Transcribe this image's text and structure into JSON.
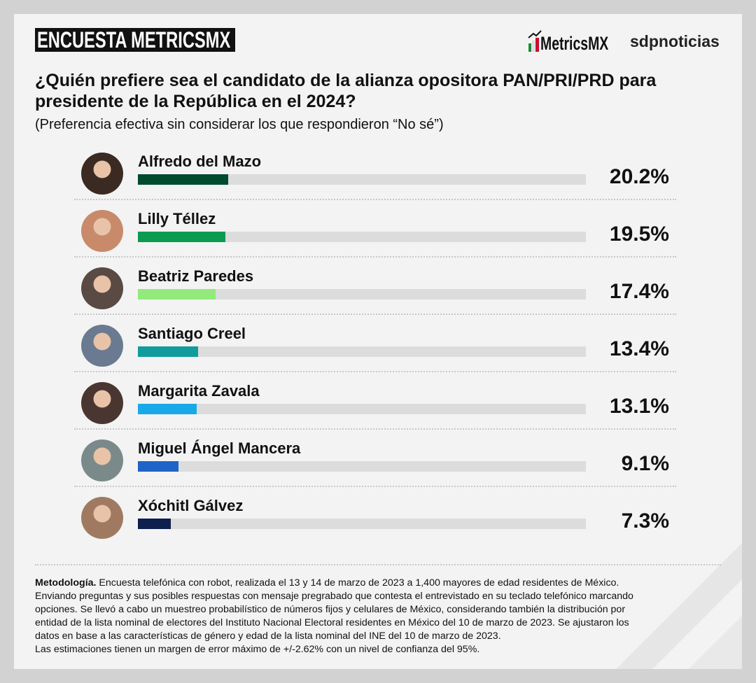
{
  "header": {
    "badge": "ENCUESTA METRICSMX",
    "logo_metrics": "MetricsMX",
    "logo_sdp": "sdpnoticias"
  },
  "title": "¿Quién prefiere sea el candidato de la alianza opositora PAN/PRI/PRD para presidente de la República en el 2024?",
  "subtitle": "(Preferencia efectiva sin considerar los que respondieron “No sé”)",
  "chart_data": {
    "type": "bar",
    "orientation": "horizontal",
    "title": "¿Quién prefiere sea el candidato de la alianza opositora PAN/PRI/PRD para presidente de la República en el 2024?",
    "xlim": [
      0,
      100
    ],
    "categories": [
      "Alfredo del Mazo",
      "Lilly Téllez",
      "Beatriz Paredes",
      "Santiago Creel",
      "Margarita Zavala",
      "Miguel Ángel Mancera",
      "Xóchitl Gálvez"
    ],
    "values": [
      20.2,
      19.5,
      17.4,
      13.4,
      13.1,
      9.1,
      7.3
    ],
    "labels": [
      "20.2%",
      "19.5%",
      "17.4%",
      "13.4%",
      "13.1%",
      "9.1%",
      "7.3%"
    ],
    "colors": [
      "#004a2e",
      "#0b9b50",
      "#93ea7c",
      "#129b9c",
      "#1aa9e8",
      "#1f63c7",
      "#0e1f4e"
    ],
    "avatar_colors": [
      "#3b2a22",
      "#c88a6a",
      "#5a4a44",
      "#6a7a90",
      "#4a3630",
      "#7a8a8a",
      "#a07a60"
    ]
  },
  "methodology": {
    "label": "Metodología.",
    "lines": [
      " Encuesta telefónica con robot, realizada el 13 y 14 de marzo de 2023 a 1,400 mayores de edad residentes de México.",
      "Enviando preguntas y sus posibles respuestas con mensaje pregrabado que contesta el entrevistado en su teclado telefónico marcando",
      "opciones. Se llevó a cabo un muestreo probabilístico de números fijos y celulares de México, considerando también la distribución por",
      "entidad de la lista nominal de electores del Instituto Nacional Electoral residentes en México del 10 de marzo de 2023. Se ajustaron los",
      "datos en base a las características de género y edad de la lista nominal del INE del 10 de marzo de 2023.",
      "Las estimaciones tienen un margen de error máximo de +/-2.62% con un nivel de confianza del 95%."
    ]
  }
}
